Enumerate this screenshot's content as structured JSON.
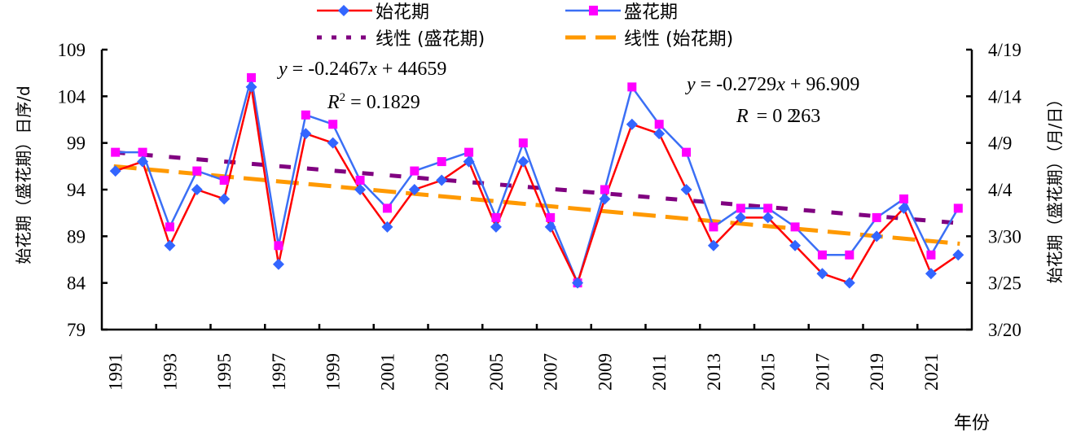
{
  "chart_data": {
    "type": "line",
    "title": "",
    "xlabel": "年份",
    "ylabel_left": "始花期（盛花期）日序/d",
    "ylabel_right": "始花期（盛花期）（月/日）",
    "x": [
      1991,
      1992,
      1993,
      1994,
      1995,
      1996,
      1997,
      1998,
      1999,
      2000,
      2001,
      2002,
      2003,
      2004,
      2005,
      2006,
      2007,
      2008,
      2009,
      2010,
      2011,
      2012,
      2013,
      2014,
      2015,
      2016,
      2017,
      2018,
      2019,
      2020,
      2021,
      2022
    ],
    "x_tick_labels": [
      "1991",
      "1993",
      "1995",
      "1997",
      "1999",
      "2001",
      "2003",
      "2005",
      "2007",
      "2009",
      "2011",
      "2013",
      "2015",
      "2017",
      "2019",
      "2021"
    ],
    "ylim": [
      79,
      109
    ],
    "y_ticks_left": [
      "109",
      "104",
      "99",
      "94",
      "89",
      "84",
      "79"
    ],
    "y_ticks_right": [
      "4/19",
      "4/14",
      "4/9",
      "4/4",
      "3/30",
      "3/25",
      "3/20"
    ],
    "grid": false,
    "legend_position": "top",
    "series": [
      {
        "name": "始花期",
        "line_color": "#ff0000",
        "marker": "diamond",
        "marker_color": "#3366ff",
        "values": [
          96,
          97,
          88,
          94,
          93,
          105,
          86,
          100,
          99,
          94,
          90,
          94,
          95,
          97,
          90,
          97,
          90,
          84,
          93,
          101,
          100,
          94,
          88,
          91,
          91,
          88,
          85,
          84,
          89,
          92,
          85,
          87
        ]
      },
      {
        "name": "盛花期",
        "line_color": "#3b6ff5",
        "marker": "square",
        "marker_color": "#ff00ff",
        "values": [
          98,
          98,
          90,
          96,
          95,
          106,
          88,
          102,
          101,
          95,
          92,
          96,
          97,
          98,
          91,
          99,
          91,
          84,
          94,
          105,
          101,
          98,
          90,
          92,
          92,
          90,
          87,
          87,
          91,
          93,
          87,
          92
        ]
      }
    ],
    "trendlines": [
      {
        "name": "线性 (盛花期)",
        "color": "#800080",
        "style": "dotted",
        "start": [
          1991,
          98.0
        ],
        "end": [
          2022,
          90.4
        ]
      },
      {
        "name": "线性 (始花期)",
        "color": "#ff9900",
        "style": "dashed",
        "start": [
          1991,
          96.5
        ],
        "end": [
          2022,
          88.2
        ]
      }
    ],
    "annotations": {
      "eq1_prefix": "y",
      "eq1_body": " = -0.2467",
      "eq1_x": "x",
      "eq1_tail": " + 44659",
      "r2_1_R": "R",
      "r2_1_sup": "2",
      "r2_1_val": " = 0.1829",
      "eq2_prefix": "y",
      "eq2_body": " = -0.2729",
      "eq2_x": "x",
      "eq2_tail": " + 96.909",
      "r2_2_R": "R",
      "r2_2_val": " = 0 ",
      "r2_2_overlap": "2",
      "r2_2_tail": "263"
    }
  }
}
